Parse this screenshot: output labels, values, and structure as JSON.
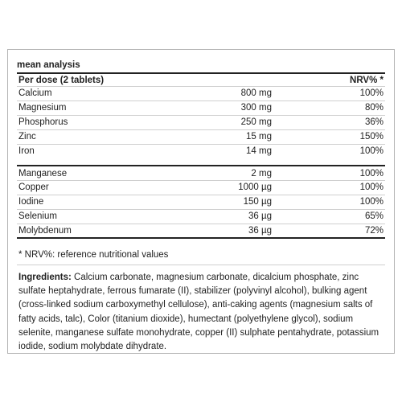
{
  "heading": "mean analysis",
  "table": {
    "header": {
      "name": "Per dose (2 tablets)",
      "amount": "",
      "nrv": "NRV% *"
    },
    "group1": [
      {
        "name": "Calcium",
        "amount": "800 mg",
        "nrv": "100%"
      },
      {
        "name": "Magnesium",
        "amount": "300 mg",
        "nrv": "80%"
      },
      {
        "name": "Phosphorus",
        "amount": "250 mg",
        "nrv": "36%"
      },
      {
        "name": "Zinc",
        "amount": "15 mg",
        "nrv": "150%"
      },
      {
        "name": "Iron",
        "amount": "14 mg",
        "nrv": "100%"
      }
    ],
    "group2": [
      {
        "name": "Manganese",
        "amount": "2 mg",
        "nrv": "100%"
      },
      {
        "name": "Copper",
        "amount": "1000 µg",
        "nrv": "100%"
      },
      {
        "name": "Iodine",
        "amount": "150 µg",
        "nrv": "100%"
      },
      {
        "name": "Selenium",
        "amount": "36 µg",
        "nrv": "65%"
      },
      {
        "name": "Molybdenum",
        "amount": "36 µg",
        "nrv": "72%"
      }
    ]
  },
  "footnote": "* NRV%: reference nutritional values",
  "ingredients": {
    "label": "Ingredients:",
    "text": " Calcium carbonate, magnesium carbonate, dicalcium phosphate, zinc sulfate heptahydrate, ferrous fumarate (II), stabilizer (polyvinyl alcohol), bulking agent (cross-linked sodium carboxymethyl cellulose), anti-caking agents (magnesium salts of fatty acids, talc), Color (titanium dioxide), humectant (polyethylene glycol), sodium selenite, manganese sulfate monohydrate, copper (II) sulphate pentahydrate, potassium iodide, sodium molybdate dihydrate."
  }
}
